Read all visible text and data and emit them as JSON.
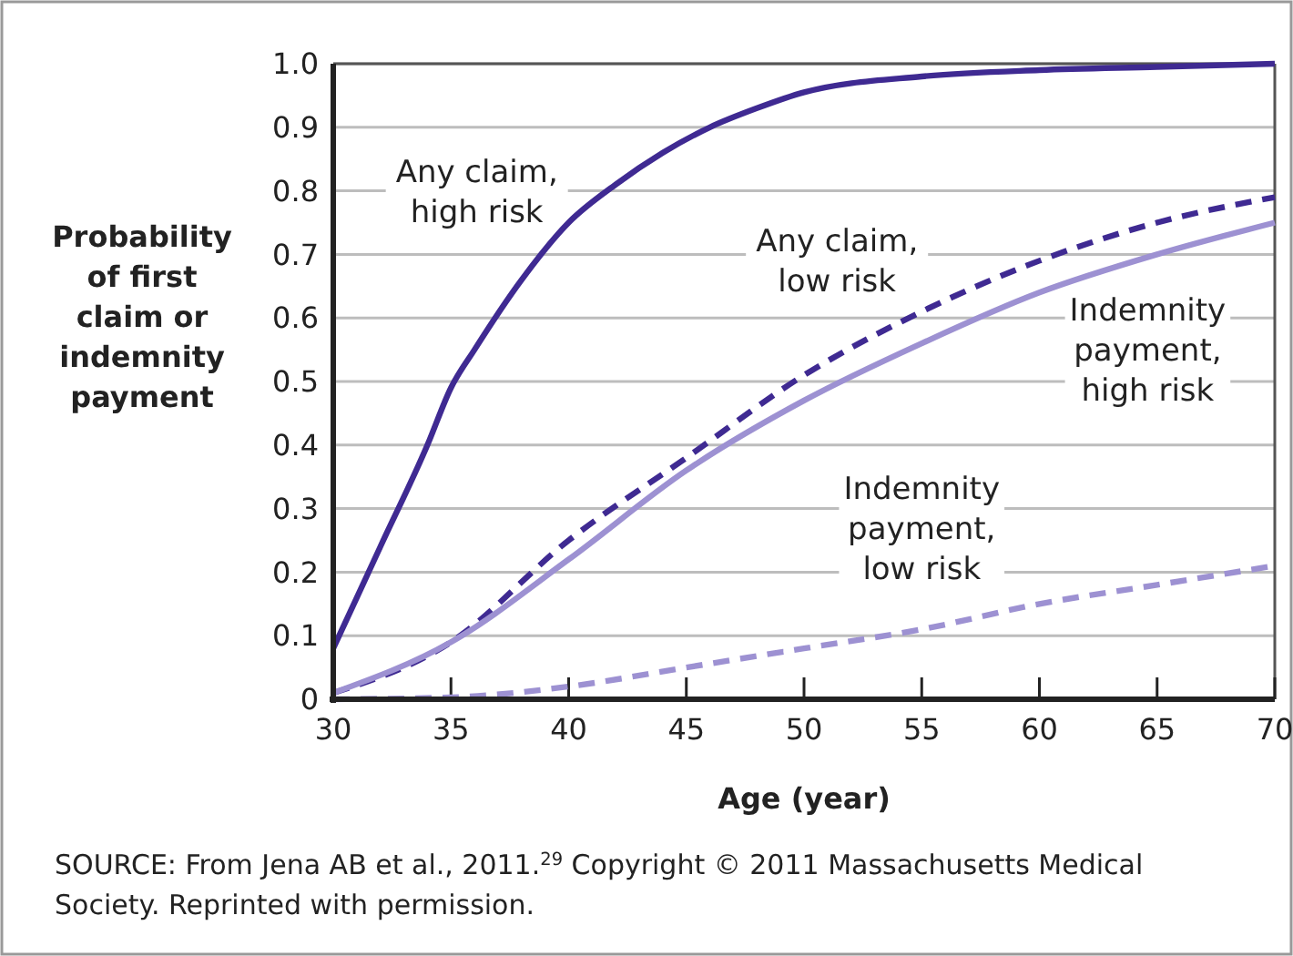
{
  "chart_data": {
    "type": "line",
    "xlabel": "Age (year)",
    "ylabel": "Probability of first claim or indemnity payment",
    "x": [
      30,
      32,
      34,
      35,
      36,
      38,
      40,
      42,
      44,
      46,
      48,
      50,
      55,
      60,
      65,
      70
    ],
    "series": [
      {
        "name": "Any claim, high risk",
        "color": "#3f2a92",
        "line_style": "solid",
        "values": [
          0.08,
          0.24,
          0.4,
          0.49,
          0.55,
          0.66,
          0.75,
          0.81,
          0.86,
          0.9,
          0.93,
          0.955,
          0.98,
          0.99,
          0.995,
          1.0
        ]
      },
      {
        "name": "Any claim, low risk",
        "color": "#3f2a92",
        "line_style": "dashed",
        "x": [
          30,
          35,
          40,
          45,
          50,
          55,
          60,
          65,
          70
        ],
        "values": [
          0.01,
          0.09,
          0.25,
          0.38,
          0.51,
          0.61,
          0.69,
          0.75,
          0.79
        ]
      },
      {
        "name": "Indemnity payment, high risk",
        "color": "#9d91d2",
        "line_style": "solid",
        "x": [
          30,
          35,
          40,
          45,
          50,
          55,
          60,
          65,
          70
        ],
        "values": [
          0.01,
          0.09,
          0.22,
          0.36,
          0.47,
          0.56,
          0.64,
          0.7,
          0.75
        ]
      },
      {
        "name": "Indemnity payment, low risk",
        "color": "#9d91d2",
        "line_style": "dashed",
        "x": [
          30,
          35,
          40,
          45,
          50,
          55,
          60,
          65,
          70
        ],
        "values": [
          0,
          0.003,
          0.02,
          0.05,
          0.08,
          0.11,
          0.15,
          0.18,
          0.21
        ]
      }
    ],
    "xlim": [
      30,
      70
    ],
    "xticks": [
      30,
      35,
      40,
      45,
      50,
      55,
      60,
      65,
      70
    ],
    "ylim": [
      0,
      1
    ],
    "yticks": [
      0,
      0.1,
      0.2,
      0.3,
      0.4,
      0.5,
      0.6,
      0.7,
      0.8,
      0.9,
      {
        "value": 1,
        "label": "1.0"
      }
    ],
    "grid": "y",
    "marker": "none",
    "annotations": [
      "SOURCE: From Jena AB et al., 2011.$^{29}$ Copyright © 2011 Massachusetts Medical Society. Reprinted with permission."
    ]
  }
}
